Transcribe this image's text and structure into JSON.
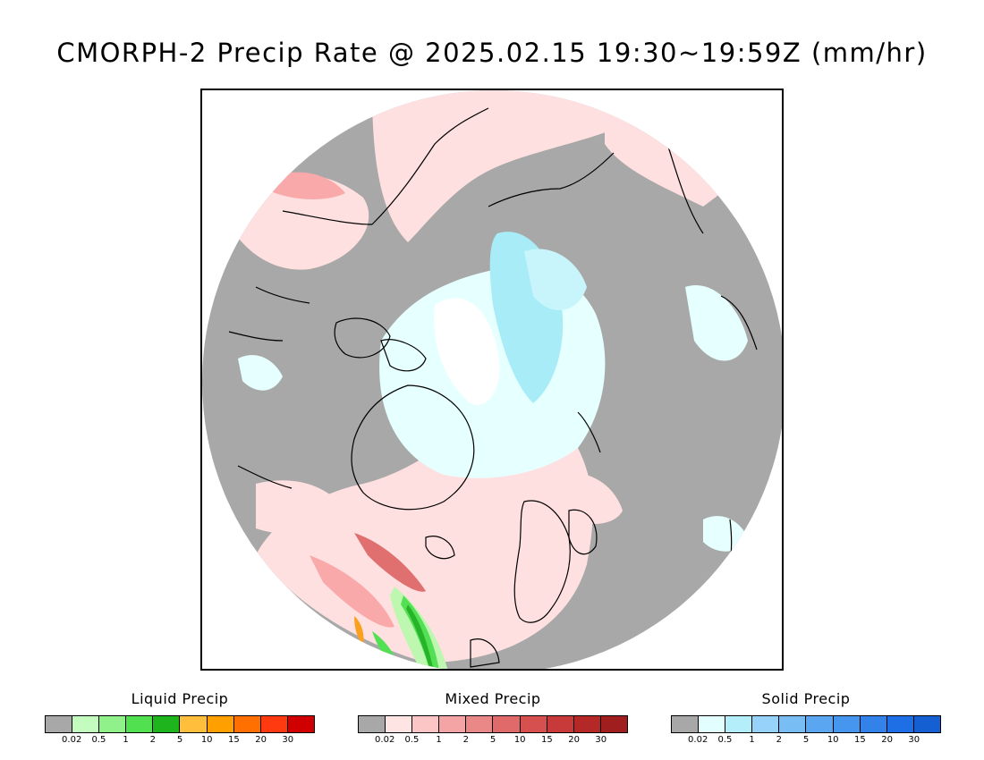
{
  "title": "CMORPH-2 Precip Rate @ 2025.02.15 19:30~19:59Z (mm/hr)",
  "map": {
    "colors": {
      "no_precip": "#a8a8a8",
      "mixed_light": "#ffe0e0",
      "mixed_medium": "#f9a9a9",
      "mixed_heavy": "#e07070",
      "solid_light": "#e6ffff",
      "solid_medium": "#a8ecf8",
      "white": "#ffffff",
      "liquid_light": "#bdf7b0",
      "liquid_medium": "#54e054",
      "liquid_heavy": "#28b428",
      "liquid_orange": "#fba01e"
    }
  },
  "legends": [
    {
      "title": "Liquid Precip",
      "colors": [
        "#a8a8a8",
        "#c4fcc0",
        "#90f08a",
        "#50e050",
        "#1eb41e",
        "#ffbe3c",
        "#ffa000",
        "#ff7000",
        "#ff3a10",
        "#d00000"
      ],
      "ticks": [
        "0.02",
        "0.5",
        "1",
        "2",
        "5",
        "10",
        "15",
        "20",
        "30"
      ]
    },
    {
      "title": "Mixed Precip",
      "colors": [
        "#a8a8a8",
        "#ffe4e4",
        "#fdc6c6",
        "#f4a4a4",
        "#ea8888",
        "#e06a6a",
        "#d65050",
        "#c83a3a",
        "#b42828",
        "#a01e1e"
      ],
      "ticks": [
        "0.02",
        "0.5",
        "1",
        "2",
        "5",
        "10",
        "15",
        "20",
        "30"
      ]
    },
    {
      "title": "Solid Precip",
      "colors": [
        "#a8a8a8",
        "#e2fefe",
        "#b4eefa",
        "#96d2fa",
        "#78bef5",
        "#5aa6f0",
        "#4696f0",
        "#3282ea",
        "#1e6ee6",
        "#1460d2"
      ],
      "ticks": [
        "0.02",
        "0.5",
        "1",
        "2",
        "5",
        "10",
        "15",
        "20",
        "30"
      ]
    }
  ]
}
